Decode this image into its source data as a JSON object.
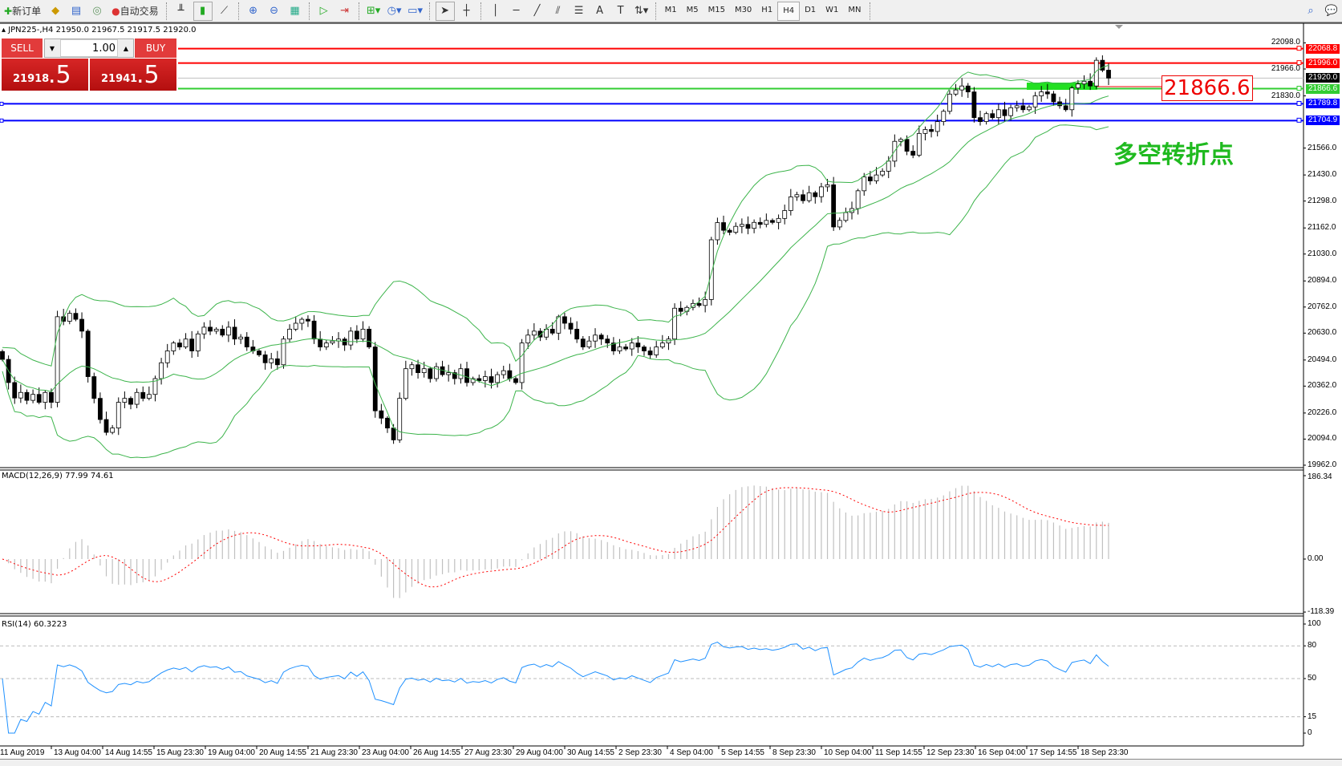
{
  "toolbar": {
    "new_order": "新订单",
    "auto_trading": "自动交易",
    "timeframes": [
      "M1",
      "M5",
      "M15",
      "M30",
      "H1",
      "H4",
      "D1",
      "W1",
      "MN"
    ],
    "active_timeframe": "H4"
  },
  "chart": {
    "title": "JPN225-,H4  21950.0 21967.5 21917.5 21920.0",
    "annotation_text": "多空转折点",
    "big_price_label": "21866.6",
    "colors": {
      "bull": "#ffffff",
      "bear": "#000000",
      "bands": "#3cb44b",
      "macd_hist": "#c0c0c0",
      "signal": "#ff0000",
      "rsi": "#1e90ff"
    }
  },
  "trade_panel": {
    "sell_label": "SELL",
    "buy_label": "BUY",
    "lot": "1.00",
    "sell_price_main": "21918",
    "sell_price_big": ".5",
    "buy_price_main": "21941",
    "buy_price_big": ".5"
  },
  "price_axis": [
    "22098.0",
    "21966.0",
    "21830.0",
    "21566.0",
    "21430.0",
    "21298.0",
    "21162.0",
    "21030.0",
    "20894.0",
    "20762.0",
    "20630.0",
    "20494.0",
    "20362.0",
    "20226.0",
    "20094.0",
    "19962.0"
  ],
  "price_levels": [
    {
      "label": "22068.8",
      "value": 22068.8,
      "color": "#ff0000"
    },
    {
      "label": "21996.0",
      "value": 21996.0,
      "color": "#ff0000"
    },
    {
      "label": "21920.0",
      "value": 21920.0,
      "color": "#000000",
      "line": "#c0c0c0"
    },
    {
      "label": "21866.6",
      "value": 21866.6,
      "color": "#32cd32"
    },
    {
      "label": "21789.8",
      "value": 21789.8,
      "color": "#0000ff"
    },
    {
      "label": "21704.9",
      "value": 21704.9,
      "color": "#0000ff"
    }
  ],
  "macd": {
    "label": "MACD(12,26,9) 77.99 74.61",
    "axis": [
      "186.34",
      "0.00",
      "-118.39"
    ],
    "range": [
      -118.39,
      186.34
    ]
  },
  "rsi": {
    "label": "RSI(14) 60.3223",
    "axis": [
      "100",
      "80",
      "50",
      "15",
      "0"
    ],
    "levels": [
      80,
      50,
      15
    ]
  },
  "time_axis": [
    "11 Aug 2019",
    "13 Aug 04:00",
    "14 Aug 14:55",
    "15 Aug 23:30",
    "19 Aug 04:00",
    "20 Aug 14:55",
    "21 Aug 23:30",
    "23 Aug 04:00",
    "26 Aug 14:55",
    "27 Aug 23:30",
    "29 Aug 04:00",
    "30 Aug 14:55",
    "2 Sep 23:30",
    "4 Sep 04:00",
    "5 Sep 14:55",
    "8 Sep 23:30",
    "10 Sep 04:00",
    "11 Sep 14:55",
    "12 Sep 23:30",
    "16 Sep 04:00",
    "17 Sep 14:55",
    "18 Sep 23:30"
  ],
  "chart_data": {
    "type": "candlestick",
    "symbol": "JPN225-",
    "timeframe": "H4",
    "price_range": [
      19962.0,
      22098.0
    ],
    "closes": [
      20497,
      20380,
      20302,
      20330,
      20290,
      20320,
      20280,
      20330,
      20280,
      20713,
      20690,
      20730,
      20700,
      20640,
      20410,
      20300,
      20193,
      20128,
      20150,
      20280,
      20300,
      20270,
      20330,
      20300,
      20320,
      20400,
      20480,
      20540,
      20580,
      20560,
      20600,
      20540,
      20626,
      20660,
      20640,
      20650,
      20620,
      20660,
      20600,
      20610,
      20560,
      20540,
      20520,
      20480,
      20500,
      20470,
      20600,
      20650,
      20680,
      20700,
      20691,
      20600,
      20560,
      20580,
      20590,
      20600,
      20570,
      20640,
      20600,
      20650,
      20560,
      20237,
      20200,
      20150,
      20090,
      20300,
      20450,
      20470,
      20430,
      20450,
      20400,
      20460,
      20420,
      20430,
      20400,
      20450,
      20380,
      20400,
      20390,
      20410,
      20380,
      20420,
      20440,
      20400,
      20380,
      20580,
      20620,
      20640,
      20610,
      20650,
      20630,
      20713,
      20680,
      20650,
      20600,
      20560,
      20590,
      20620,
      20600,
      20580,
      20540,
      20560,
      20550,
      20580,
      20560,
      20540,
      20520,
      20560,
      20580,
      20600,
      20756,
      20740,
      20760,
      20780,
      20770,
      20800,
      21102,
      21189,
      21150,
      21140,
      21170,
      21180,
      21160,
      21190,
      21180,
      21200,
      21190,
      21210,
      21250,
      21319,
      21330,
      21300,
      21340,
      21320,
      21370,
      21380,
      21167,
      21200,
      21240,
      21260,
      21350,
      21420,
      21400,
      21430,
      21449,
      21500,
      21600,
      21610,
      21550,
      21530,
      21640,
      21660,
      21650,
      21700,
      21752,
      21839,
      21860,
      21880,
      21850,
      21720,
      21700,
      21740,
      21720,
      21760,
      21730,
      21770,
      21780,
      21760,
      21774,
      21830,
      21850,
      21840,
      21800,
      21780,
      21760,
      21870,
      21890,
      21904,
      21880,
      22010,
      21960,
      21920
    ]
  }
}
